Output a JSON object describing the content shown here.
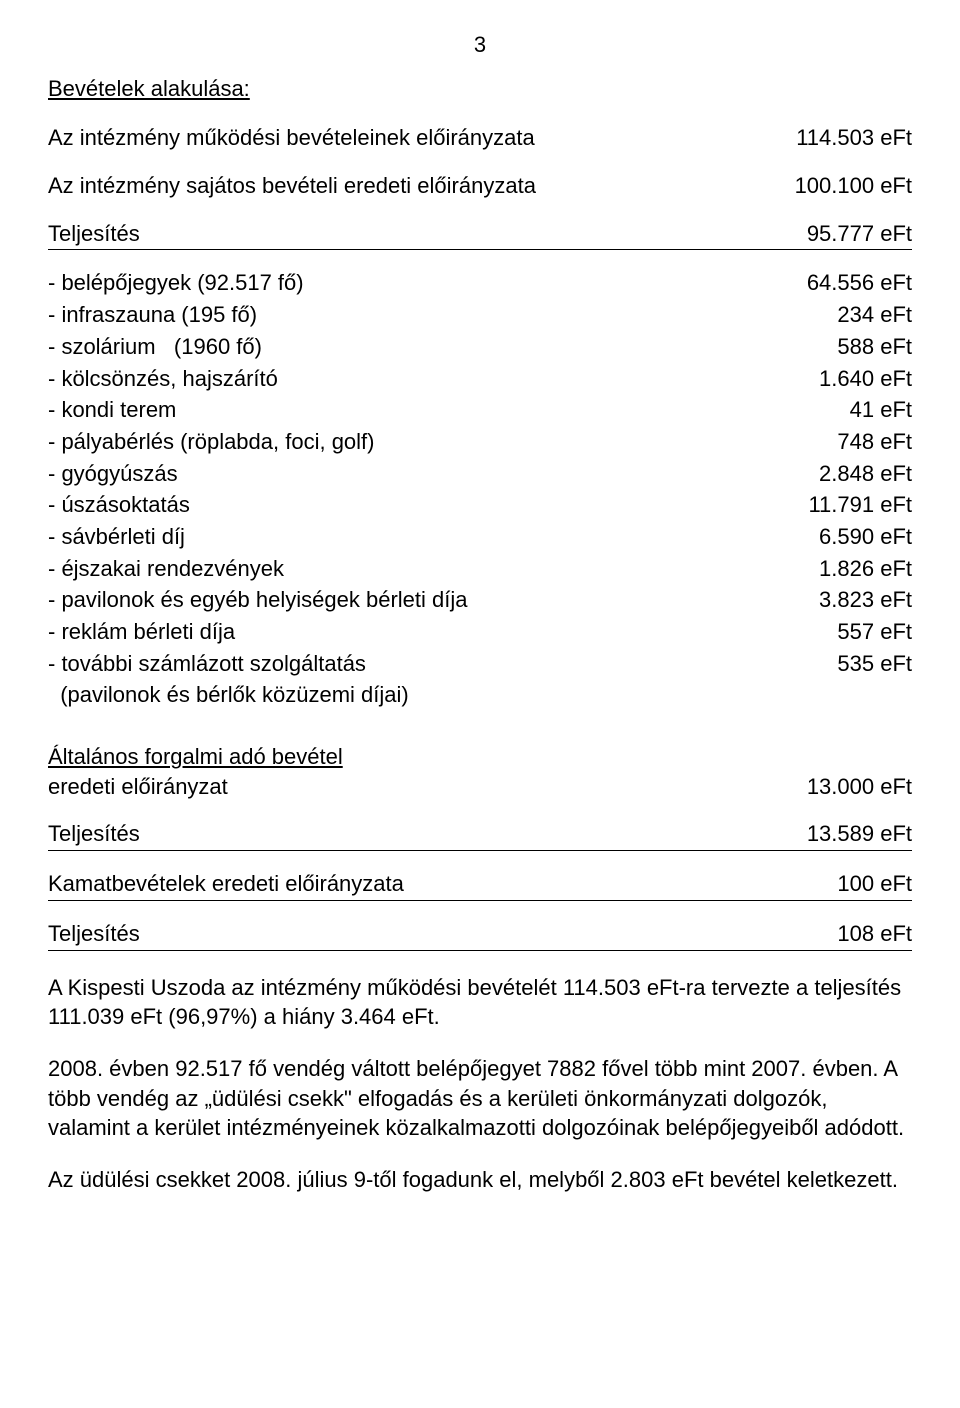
{
  "page_number": "3",
  "section_title": "Bevételek alakulása:",
  "line_mukodesi": {
    "label": "Az intézmény működési bevételeinek előirányzata",
    "value": "114.503 eFt"
  },
  "line_sajatos": {
    "label": "Az intézmény sajátos bevételi eredeti előirányzata",
    "value": "100.100 eFt"
  },
  "teljesites1": {
    "label": "Teljesítés",
    "value": "95.777 eFt"
  },
  "items": [
    {
      "label": "- belépőjegyek (92.517 fő)",
      "value": "64.556 eFt"
    },
    {
      "label": "- infraszauna (195 fő)",
      "value": "234 eFt"
    },
    {
      "label": "- szolárium   (1960 fő)",
      "value": "588 eFt"
    },
    {
      "label": "- kölcsönzés, hajszárító",
      "value": "1.640  eFt"
    },
    {
      "label": "- kondi terem",
      "value": "41  eFt"
    },
    {
      "label": "- pályabérlés (röplabda, foci, golf)",
      "value": "748  eFt"
    },
    {
      "label": "- gyógyúszás",
      "value": "2.848  eFt"
    },
    {
      "label": "- úszásoktatás",
      "value": "11.791  eFt"
    },
    {
      "label": "- sávbérleti díj",
      "value": "6.590  eFt"
    },
    {
      "label": "- éjszakai rendezvények",
      "value": "1.826  eFt"
    },
    {
      "label": "- pavilonok és egyéb helyiségek bérleti díja",
      "value": "3.823  eFt"
    },
    {
      "label": "- reklám bérleti díja",
      "value": "557  eFt"
    },
    {
      "label": "- további számlázott szolgáltatás",
      "value": "535  eFt"
    },
    {
      "label": "  (pavilonok és bérlők közüzemi díjai)",
      "value": ""
    }
  ],
  "afa_title": "Általános forgalmi adó bevétel",
  "afa_row": {
    "label": "eredeti előirányzat",
    "value": "13.000  eFt"
  },
  "teljesites2": {
    "label": "Teljesítés",
    "value": "13.589  eFt"
  },
  "kamat_row": {
    "label": "Kamatbevételek eredeti előirányzata",
    "value": "100 eFt"
  },
  "teljesites3": {
    "label": "Teljesítés",
    "value": "108  eFt"
  },
  "para1": "A Kispesti Uszoda az intézmény működési bevételét 114.503 eFt-ra tervezte a teljesítés 111.039 eFt (96,97%) a hiány 3.464 eFt.",
  "para2": "2008. évben 92.517 fő vendég váltott belépőjegyet 7882 fővel több mint 2007. évben. A több vendég az „üdülési csekk\" elfogadás és a kerületi önkormányzati dolgozók, valamint a kerület intézményeinek közalkalmazotti dolgozóinak belépőjegyeiből adódott.",
  "para3": "Az üdülési csekket 2008. július 9-től fogadunk el, melyből 2.803 eFt bevétel keletkezett."
}
